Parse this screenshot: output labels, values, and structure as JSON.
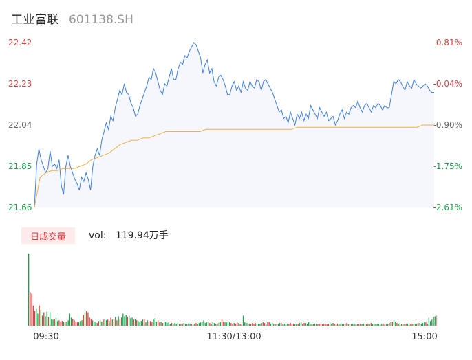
{
  "stock": {
    "name": "工业富联",
    "code": "601138.SH"
  },
  "volume_panel": {
    "tab_label": "日成交量",
    "vol_label": "vol:",
    "vol_value": "119.94万手"
  },
  "colors": {
    "price_line": "#3b7ded",
    "avg_line": "#f2b03c",
    "up": "#e83c3c",
    "down": "#1aa34a",
    "area": "#f5f7fd"
  },
  "chart_data": [
    {
      "type": "line",
      "title": "",
      "y_ticks_left": [
        "22.42",
        "22.23",
        "22.04",
        "21.85",
        "21.66"
      ],
      "y_ticks_right": [
        "0.81%",
        "-0.04%",
        "-0.90%",
        "-1.75%",
        "-2.61%"
      ],
      "ylim": [
        21.66,
        22.42
      ],
      "x_ticks": [
        "09:30",
        "11:30/13:00",
        "15:00"
      ],
      "series": [
        {
          "values": [
            21.66,
            21.86,
            21.93,
            21.88,
            21.85,
            21.82,
            21.84,
            21.92,
            21.85,
            21.86,
            21.84,
            21.88,
            21.76,
            21.72,
            21.85,
            21.9,
            21.85,
            21.82,
            21.79,
            21.77,
            21.74,
            21.8,
            21.78,
            21.82,
            21.79,
            21.74,
            21.85,
            21.9,
            21.93,
            21.9,
            21.97,
            22.01,
            22.05,
            22.02,
            22.08,
            22.06,
            22.12,
            22.16,
            22.2,
            22.18,
            22.23,
            22.19,
            22.18,
            22.14,
            22.12,
            22.08,
            22.09,
            22.13,
            22.16,
            22.19,
            22.22,
            22.26,
            22.25,
            22.3,
            22.28,
            22.24,
            22.2,
            22.18,
            22.23,
            22.22,
            22.26,
            22.3,
            22.25,
            22.25,
            22.3,
            22.33,
            22.32,
            22.36,
            22.35,
            22.38,
            22.4,
            22.42,
            22.41,
            22.38,
            22.35,
            22.28,
            22.32,
            22.34,
            22.28,
            22.3,
            22.24,
            22.22,
            22.26,
            22.27,
            22.25,
            22.22,
            22.18,
            22.18,
            22.22,
            22.24,
            22.2,
            22.22,
            22.19,
            22.24,
            22.21,
            22.2,
            22.24,
            22.22,
            22.21,
            22.25,
            22.24,
            22.2,
            22.24,
            22.25,
            22.23,
            22.21,
            22.19,
            22.16,
            22.13,
            22.1,
            22.11,
            22.07,
            22.08,
            22.05,
            22.1,
            22.07,
            22.04,
            22.09,
            22.07,
            22.1,
            22.06,
            22.09,
            22.07,
            22.13,
            22.11,
            22.09,
            22.07,
            22.12,
            22.1,
            22.08,
            22.1,
            22.06,
            22.07,
            22.08,
            22.04,
            22.06,
            22.09,
            22.11,
            22.07,
            22.1,
            22.09,
            22.12,
            22.13,
            22.12,
            22.15,
            22.12,
            22.1,
            22.13,
            22.14,
            22.12,
            22.1,
            22.13,
            22.12,
            22.14,
            22.13,
            22.11,
            22.13,
            22.12,
            22.12,
            22.18,
            22.24,
            22.23,
            22.25,
            22.24,
            22.22,
            22.2,
            22.24,
            22.22,
            22.21,
            22.25,
            22.23,
            22.22,
            22.21,
            22.22,
            22.23,
            22.22,
            22.2,
            22.19,
            22.19
          ]
        },
        {
          "values": [
            21.66,
            21.8,
            21.82,
            21.83,
            21.83,
            21.84,
            21.84,
            21.84,
            21.85,
            21.86,
            21.88,
            21.89,
            21.9,
            21.91,
            21.93,
            21.95,
            21.96,
            21.97,
            21.97,
            21.98,
            21.98,
            21.99,
            22.0,
            22.01,
            22.01,
            22.01,
            22.01,
            22.01,
            22.01,
            22.01,
            22.02,
            22.02,
            22.02,
            22.02,
            22.02,
            22.02,
            22.02,
            22.02,
            22.02,
            22.02,
            22.02,
            22.02,
            22.02,
            22.02,
            22.02,
            22.02,
            22.03,
            22.03,
            22.03,
            22.03,
            22.03,
            22.03,
            22.03,
            22.03,
            22.03,
            22.03,
            22.03,
            22.03,
            22.03,
            22.03,
            22.03,
            22.03,
            22.03,
            22.03,
            22.03,
            22.03,
            22.03,
            22.03,
            22.04,
            22.04,
            22.04
          ]
        }
      ]
    },
    {
      "type": "bar",
      "title": "",
      "ylim": [
        0,
        110
      ],
      "values": [
        108,
        50,
        48,
        30,
        22,
        25,
        18,
        30,
        24,
        15,
        20,
        14,
        21,
        13,
        20,
        10,
        9,
        10,
        12,
        7,
        8,
        6,
        7,
        6,
        5,
        6,
        8,
        18,
        12,
        10,
        8,
        6,
        5,
        6,
        7,
        8,
        16,
        20,
        22,
        20,
        12,
        10,
        8,
        6,
        5,
        4,
        7,
        8,
        6,
        9,
        10,
        8,
        9,
        7,
        12,
        9,
        10,
        13,
        8,
        14,
        10,
        12,
        18,
        14,
        16,
        13,
        15,
        11,
        12,
        9,
        10,
        8,
        7,
        6,
        7,
        9,
        10,
        5,
        8,
        6,
        7,
        5,
        9,
        11,
        6,
        8,
        5,
        6,
        4,
        5,
        6,
        4,
        5,
        3,
        4,
        3,
        4,
        3,
        4,
        3,
        3,
        3,
        4,
        3,
        2,
        3,
        3,
        2,
        3,
        3,
        4,
        3,
        4,
        5,
        6,
        8,
        4,
        5,
        6,
        4,
        3,
        5,
        4,
        3,
        3,
        4,
        5,
        10,
        6,
        5,
        5,
        6,
        5,
        4,
        3,
        4,
        3,
        5,
        4,
        3,
        2,
        15,
        5,
        4,
        4,
        3,
        3,
        4,
        3,
        4,
        3,
        3,
        3,
        4,
        5,
        4,
        3,
        5,
        6,
        3,
        4,
        3,
        3,
        2,
        3,
        4,
        4,
        3,
        3,
        3,
        2,
        3,
        4,
        3,
        3,
        2,
        3,
        3,
        4,
        5,
        3,
        4,
        4,
        3,
        5,
        3,
        3,
        2,
        3,
        3,
        2,
        3,
        3,
        2,
        3,
        3,
        2,
        3,
        5,
        3,
        4,
        3,
        3,
        3,
        2,
        3,
        2,
        3,
        3,
        4,
        2,
        3,
        2,
        3,
        3,
        3,
        2,
        2,
        3,
        2,
        3,
        2,
        2,
        3,
        3,
        4,
        2,
        3,
        2,
        3,
        2,
        3,
        3,
        3,
        2,
        2,
        3,
        4,
        5,
        6,
        8,
        6,
        4,
        3,
        4,
        3,
        3,
        2,
        3,
        3,
        2,
        2,
        3,
        3,
        3,
        3,
        4,
        4,
        3,
        4,
        5,
        5,
        3,
        12,
        7,
        9,
        13,
        14,
        15
      ],
      "directions": "duuuudduduuddudddudduuududddduuuuddduduuuuddduudduddudududududdddudddududdddudduuuddduududdddduddddududdddduduudddddddduudddudduudddduuduuduudddduduuudddduuduudddudddudddduuuuddudduudddddudduuuuduuudduduudddduudduddduuuddudududdddddduuddududdudduduudduudddudddduudddd"
    }
  ]
}
